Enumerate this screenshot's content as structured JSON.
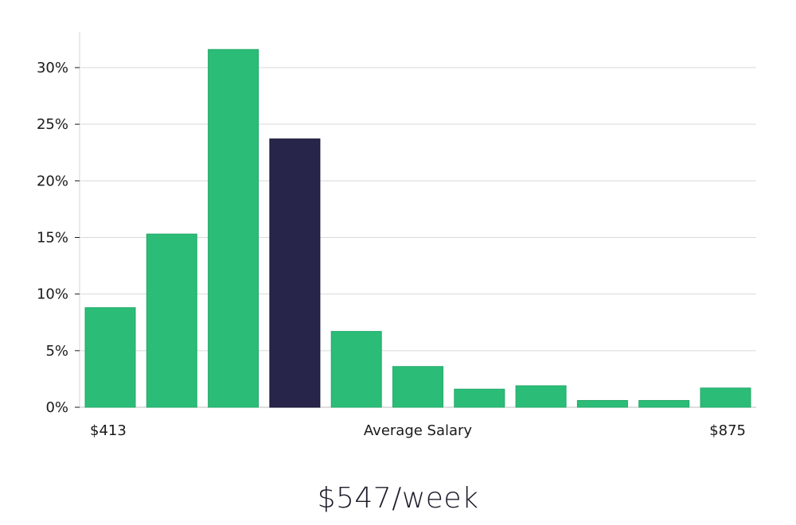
{
  "chart_data": {
    "type": "bar",
    "x_axis": {
      "min_label": "$413",
      "center_label": "Average Salary",
      "max_label": "$875"
    },
    "ylim": [
      0,
      33
    ],
    "yticks": [
      0,
      5,
      10,
      15,
      20,
      25,
      30
    ],
    "ytick_labels": [
      "0%",
      "5%",
      "10%",
      "15%",
      "20%",
      "25%",
      "30%"
    ],
    "grid": true,
    "values": [
      8.8,
      15.3,
      31.6,
      23.7,
      6.7,
      3.6,
      1.6,
      1.9,
      0.6,
      0.6,
      1.7
    ],
    "highlight_index": 3,
    "colors": {
      "bar": "#2bbd78",
      "highlight": "#28254a",
      "grid": "#d9d9d9",
      "axis": "#bdbdbd"
    }
  },
  "headline": "$547/week"
}
